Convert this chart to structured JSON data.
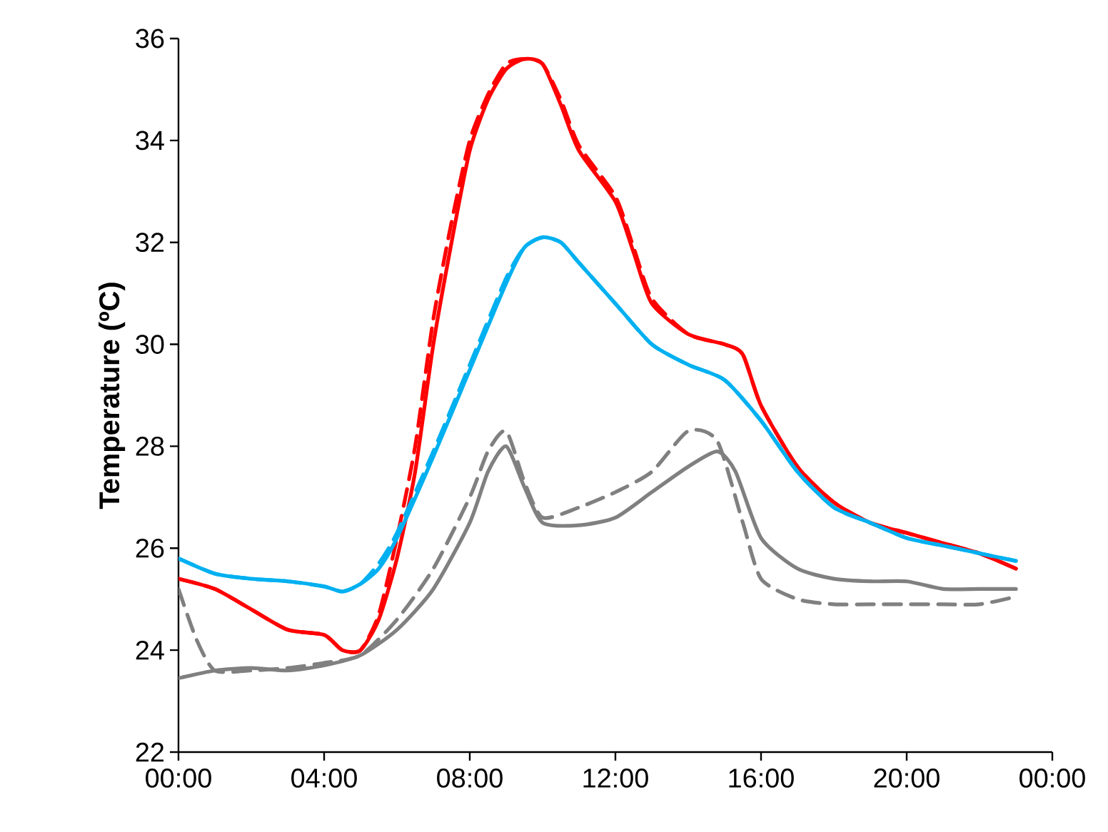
{
  "chart_data": {
    "type": "line",
    "ylabel": "Temperature (ºC)",
    "xlim": [
      0,
      24
    ],
    "ylim": [
      22,
      36
    ],
    "xticks": [
      {
        "value": 0,
        "label": "00:00"
      },
      {
        "value": 4,
        "label": "04:00"
      },
      {
        "value": 8,
        "label": "08:00"
      },
      {
        "value": 12,
        "label": "12:00"
      },
      {
        "value": 16,
        "label": "16:00"
      },
      {
        "value": 20,
        "label": "20:00"
      },
      {
        "value": 24,
        "label": "00:00"
      }
    ],
    "yticks": [
      22,
      24,
      26,
      28,
      30,
      32,
      34,
      36
    ],
    "marker": "none",
    "series": [
      {
        "color": "#ff0000",
        "line_style": "dashed",
        "x": [
          0,
          1,
          2,
          3,
          4,
          4.5,
          5,
          5.5,
          6,
          6.5,
          7,
          7.5,
          8,
          8.5,
          9,
          9.5,
          10,
          10.5,
          11,
          12,
          12.5,
          13,
          14,
          15,
          15.5,
          16,
          17,
          18,
          19,
          20,
          21,
          22,
          23
        ],
        "values": [
          25.4,
          25.2,
          24.8,
          24.4,
          24.3,
          24.0,
          24.0,
          24.7,
          26.2,
          28.0,
          30.5,
          32.4,
          34.0,
          34.9,
          35.5,
          35.6,
          35.5,
          34.8,
          33.9,
          32.9,
          31.9,
          30.9,
          30.2,
          30.0,
          29.8,
          28.8,
          27.6,
          26.9,
          26.5,
          26.3,
          26.1,
          25.9,
          25.6
        ]
      },
      {
        "color": "#ff0000",
        "line_style": "solid",
        "x": [
          0,
          1,
          2,
          3,
          4,
          4.5,
          5,
          5.5,
          6,
          6.5,
          7,
          7.5,
          8,
          8.5,
          9,
          9.5,
          10,
          10.5,
          11,
          12,
          12.5,
          13,
          14,
          15,
          15.5,
          16,
          17,
          18,
          19,
          20,
          21,
          22,
          23
        ],
        "values": [
          25.4,
          25.2,
          24.8,
          24.4,
          24.3,
          24.0,
          24.0,
          24.6,
          25.8,
          27.5,
          30.0,
          32.0,
          33.8,
          34.8,
          35.4,
          35.6,
          35.5,
          34.7,
          33.8,
          32.8,
          31.8,
          30.8,
          30.2,
          30.0,
          29.8,
          28.8,
          27.6,
          26.9,
          26.5,
          26.3,
          26.1,
          25.9,
          25.6
        ]
      },
      {
        "color": "#00b0f0",
        "line_style": "dashed",
        "x": [
          0,
          1,
          2,
          3,
          4,
          4.5,
          5,
          5.5,
          6,
          7,
          8,
          9,
          9.5,
          10,
          10.5,
          11,
          12,
          13,
          14,
          15,
          16,
          17,
          18,
          19,
          20,
          21,
          22,
          23
        ],
        "values": [
          25.8,
          25.5,
          25.4,
          25.35,
          25.25,
          25.15,
          25.3,
          25.7,
          26.3,
          27.9,
          29.6,
          31.3,
          31.9,
          32.1,
          32.0,
          31.6,
          30.8,
          30.0,
          29.6,
          29.3,
          28.5,
          27.5,
          26.8,
          26.5,
          26.2,
          26.05,
          25.9,
          25.75
        ]
      },
      {
        "color": "#00b0f0",
        "line_style": "solid",
        "x": [
          0,
          1,
          2,
          3,
          4,
          4.5,
          5,
          5.5,
          6,
          7,
          8,
          9,
          9.5,
          10,
          10.5,
          11,
          12,
          13,
          14,
          15,
          16,
          17,
          18,
          19,
          20,
          21,
          22,
          23
        ],
        "values": [
          25.8,
          25.5,
          25.4,
          25.35,
          25.25,
          25.15,
          25.3,
          25.6,
          26.2,
          27.8,
          29.5,
          31.2,
          31.9,
          32.1,
          32.0,
          31.6,
          30.8,
          30.0,
          29.6,
          29.3,
          28.5,
          27.5,
          26.8,
          26.5,
          26.2,
          26.05,
          25.9,
          25.75
        ]
      },
      {
        "color": "#808080",
        "line_style": "dashed",
        "x": [
          0,
          0.5,
          1,
          2,
          3,
          4,
          5,
          6,
          7,
          8,
          8.5,
          9,
          9.5,
          10,
          11,
          12,
          13,
          14,
          14.8,
          15.5,
          16,
          17,
          18,
          19,
          20,
          21,
          22,
          23
        ],
        "values": [
          25.2,
          24.2,
          23.6,
          23.6,
          23.65,
          23.75,
          23.9,
          24.6,
          25.6,
          27.0,
          27.9,
          28.3,
          27.3,
          26.6,
          26.8,
          27.1,
          27.5,
          28.3,
          28.1,
          26.5,
          25.4,
          25.0,
          24.9,
          24.9,
          24.9,
          24.9,
          24.9,
          25.05
        ]
      },
      {
        "color": "#808080",
        "line_style": "solid",
        "x": [
          0,
          1,
          2,
          3,
          4,
          5,
          6,
          7,
          8,
          8.5,
          9,
          9.5,
          10,
          11,
          12,
          13,
          14,
          14.8,
          15.3,
          16,
          17,
          18,
          19,
          20,
          21,
          22,
          23
        ],
        "values": [
          23.45,
          23.6,
          23.65,
          23.6,
          23.7,
          23.9,
          24.4,
          25.2,
          26.5,
          27.5,
          28.0,
          27.2,
          26.5,
          26.45,
          26.6,
          27.1,
          27.6,
          27.9,
          27.5,
          26.2,
          25.6,
          25.4,
          25.35,
          25.35,
          25.2,
          25.2,
          25.2
        ]
      }
    ]
  }
}
